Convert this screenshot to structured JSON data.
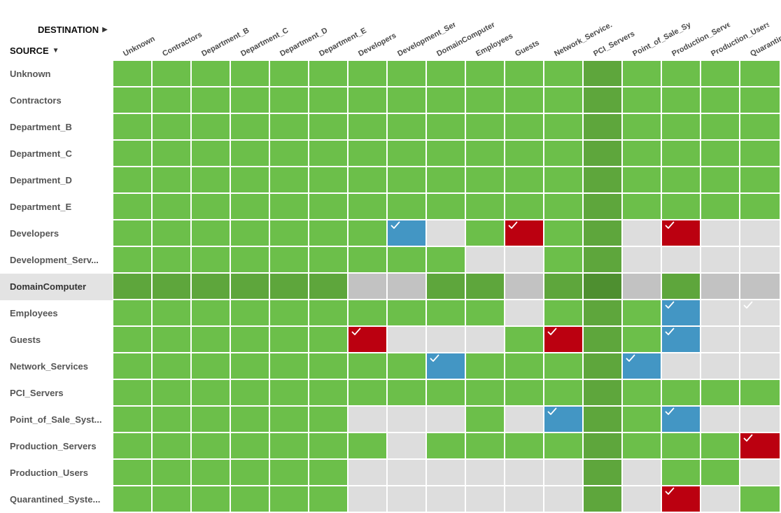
{
  "labels": {
    "destination": "DESTINATION",
    "source": "SOURCE"
  },
  "icons": {
    "destination_arrow": "caret-right-icon",
    "source_arrow": "caret-down-icon",
    "cell_check": "check-icon"
  },
  "colors": {
    "allowed": "#6cbf4a",
    "denied": "#dddddd",
    "monitor_custom": "#4396c4",
    "deny_custom": "#bb0010",
    "highlight_row": "#5ea63c",
    "highlight_row_denied": "#c2c2c2",
    "highlight_col": "#5ea63c",
    "highlight_cross": "#4e8f30",
    "check": "#ffffff"
  },
  "legend_codes": {
    "G": "allowed",
    "L": "denied",
    "B": "custom policy (blue)",
    "R": "custom policy (red)"
  },
  "selected_row_index": 8,
  "selected_col_index": 12,
  "columns": [
    "Unknown",
    "Contractors",
    "Department_B",
    "Department_C",
    "Department_D",
    "Department_E",
    "Developers",
    "Development_Ser",
    "DomainComputer",
    "Employees",
    "Guests",
    "Network_Service...",
    "PCI_Servers",
    "Point_of_Sale_Sy...",
    "Production_Serve",
    "Production_Users",
    "Quarantine..."
  ],
  "rows": [
    "Unknown",
    "Contractors",
    "Department_B",
    "Department_C",
    "Department_D",
    "Department_E",
    "Developers",
    "Development_Serv...",
    "DomainComputer",
    "Employees",
    "Guests",
    "Network_Services",
    "PCI_Servers",
    "Point_of_Sale_Syst...",
    "Production_Servers",
    "Production_Users",
    "Quarantined_Syste..."
  ],
  "matrix": [
    [
      "G",
      "G",
      "G",
      "G",
      "G",
      "G",
      "G",
      "G",
      "G",
      "G",
      "G",
      "G",
      "G",
      "G",
      "G",
      "G",
      "G"
    ],
    [
      "G",
      "G",
      "G",
      "G",
      "G",
      "G",
      "G",
      "G",
      "G",
      "G",
      "G",
      "G",
      "G",
      "G",
      "G",
      "G",
      "G"
    ],
    [
      "G",
      "G",
      "G",
      "G",
      "G",
      "G",
      "G",
      "G",
      "G",
      "G",
      "G",
      "G",
      "G",
      "G",
      "G",
      "G",
      "G"
    ],
    [
      "G",
      "G",
      "G",
      "G",
      "G",
      "G",
      "G",
      "G",
      "G",
      "G",
      "G",
      "G",
      "G",
      "G",
      "G",
      "G",
      "G"
    ],
    [
      "G",
      "G",
      "G",
      "G",
      "G",
      "G",
      "G",
      "G",
      "G",
      "G",
      "G",
      "G",
      "G",
      "G",
      "G",
      "G",
      "G"
    ],
    [
      "G",
      "G",
      "G",
      "G",
      "G",
      "G",
      "G",
      "G",
      "G",
      "G",
      "G",
      "G",
      "G",
      "G",
      "G",
      "G",
      "G"
    ],
    [
      "G",
      "G",
      "G",
      "G",
      "G",
      "G",
      "G",
      "B",
      "L",
      "G",
      "R",
      "G",
      "G",
      "L",
      "R",
      "L",
      "L"
    ],
    [
      "G",
      "G",
      "G",
      "G",
      "G",
      "G",
      "G",
      "G",
      "G",
      "L",
      "L",
      "G",
      "G",
      "L",
      "L",
      "L",
      "L"
    ],
    [
      "G",
      "G",
      "G",
      "G",
      "G",
      "G",
      "L",
      "L",
      "G",
      "G",
      "L",
      "G",
      "G",
      "L",
      "G",
      "L",
      "L"
    ],
    [
      "G",
      "G",
      "G",
      "G",
      "G",
      "G",
      "G",
      "G",
      "G",
      "G",
      "L",
      "G",
      "G",
      "G",
      "B",
      "L",
      "L"
    ],
    [
      "G",
      "G",
      "G",
      "G",
      "G",
      "G",
      "R",
      "L",
      "L",
      "L",
      "G",
      "R",
      "G",
      "G",
      "B",
      "L",
      "L"
    ],
    [
      "G",
      "G",
      "G",
      "G",
      "G",
      "G",
      "G",
      "G",
      "B",
      "G",
      "G",
      "G",
      "G",
      "B",
      "L",
      "L",
      "L"
    ],
    [
      "G",
      "G",
      "G",
      "G",
      "G",
      "G",
      "G",
      "G",
      "G",
      "G",
      "G",
      "G",
      "G",
      "G",
      "G",
      "G",
      "G"
    ],
    [
      "G",
      "G",
      "G",
      "G",
      "G",
      "G",
      "L",
      "L",
      "L",
      "G",
      "L",
      "B",
      "G",
      "G",
      "B",
      "L",
      "L"
    ],
    [
      "G",
      "G",
      "G",
      "G",
      "G",
      "G",
      "G",
      "L",
      "G",
      "G",
      "G",
      "G",
      "G",
      "G",
      "G",
      "G",
      "R"
    ],
    [
      "G",
      "G",
      "G",
      "G",
      "G",
      "G",
      "L",
      "L",
      "L",
      "L",
      "L",
      "L",
      "G",
      "L",
      "G",
      "G",
      "L"
    ],
    [
      "G",
      "G",
      "G",
      "G",
      "G",
      "G",
      "L",
      "L",
      "L",
      "L",
      "L",
      "L",
      "G",
      "L",
      "R",
      "L",
      "G"
    ]
  ],
  "checks": [
    [
      6,
      7
    ],
    [
      6,
      10
    ],
    [
      6,
      14
    ],
    [
      9,
      14
    ],
    [
      9,
      16
    ],
    [
      10,
      6
    ],
    [
      10,
      11
    ],
    [
      10,
      14
    ],
    [
      11,
      8
    ],
    [
      11,
      13
    ],
    [
      13,
      11
    ],
    [
      13,
      14
    ],
    [
      14,
      16
    ],
    [
      16,
      14
    ]
  ]
}
